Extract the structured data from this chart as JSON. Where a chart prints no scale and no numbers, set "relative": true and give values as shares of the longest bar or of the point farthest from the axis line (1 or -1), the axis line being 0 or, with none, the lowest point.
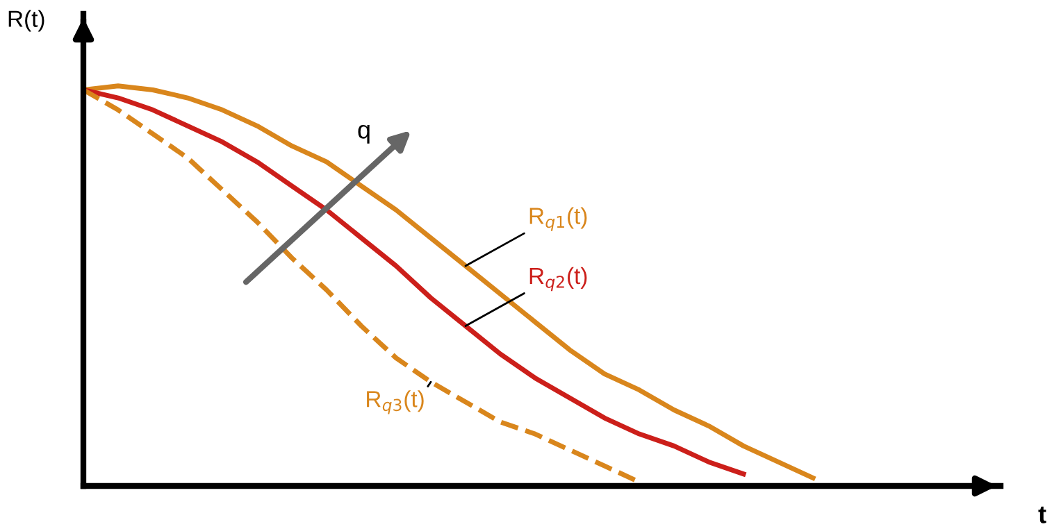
{
  "chart_data": {
    "type": "line",
    "relative": true,
    "ylabel": "R(t)",
    "categories": [
      null,
      null,
      null,
      null,
      null,
      null,
      null,
      null,
      null,
      null,
      null,
      null,
      null,
      null,
      null,
      null,
      null,
      null,
      null,
      null,
      null,
      null
    ],
    "annotations": [
      "q",
      "t"
    ],
    "series": [
      {
        "name": "R$_{q1}$(t)",
        "color": "#d9861c",
        "line_style": "solid",
        "values": [
          0.99,
          1.0,
          0.99,
          0.97,
          0.94,
          0.9,
          0.85,
          0.81,
          0.75,
          0.69,
          0.62,
          0.55,
          0.48,
          0.41,
          0.34,
          0.28,
          0.24,
          0.19,
          0.15,
          0.1,
          0.06,
          0.02
        ]
      },
      {
        "name": "R$_{q2}$(t)",
        "color": "#cc1f1a",
        "line_style": "solid",
        "values": [
          0.99,
          0.97,
          0.94,
          0.9,
          0.86,
          0.81,
          0.75,
          0.69,
          0.62,
          0.55,
          0.47,
          0.4,
          0.33,
          0.27,
          0.22,
          0.17,
          0.13,
          0.1,
          0.06,
          0.03,
          null,
          null
        ]
      },
      {
        "name": "R$_{q3}$(t)",
        "color": "#d9861c",
        "line_style": "dashed",
        "values": [
          0.99,
          0.94,
          0.88,
          0.82,
          0.74,
          0.66,
          0.57,
          0.49,
          0.4,
          0.32,
          0.26,
          0.21,
          0.16,
          0.13,
          0.09,
          0.05,
          0.01,
          null,
          null,
          null,
          null,
          null
        ]
      }
    ],
    "legend": false,
    "marker": "none"
  }
}
